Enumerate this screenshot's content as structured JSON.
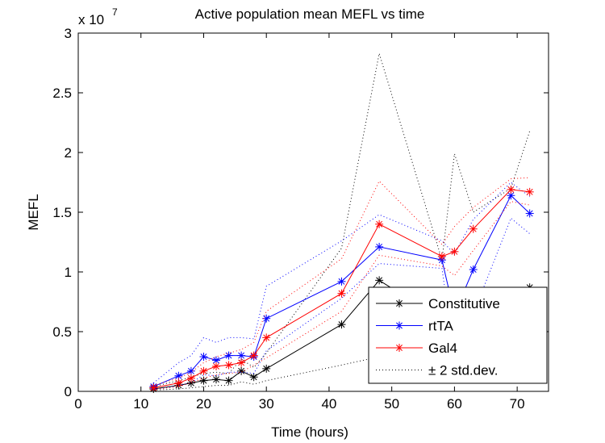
{
  "chart_data": {
    "type": "line",
    "title": "Active population mean MEFL vs time",
    "xlabel": "Time (hours)",
    "ylabel": "MEFL",
    "xlim": [
      0,
      75
    ],
    "ylim": [
      0,
      30000000
    ],
    "y_exponent_label": "x 10",
    "y_exponent_power": "7",
    "xticks": [
      0,
      10,
      20,
      30,
      40,
      50,
      60,
      70
    ],
    "xtick_labels": [
      "0",
      "10",
      "20",
      "30",
      "40",
      "50",
      "60",
      "70"
    ],
    "yticks": [
      0,
      5000000,
      10000000,
      15000000,
      20000000,
      25000000,
      30000000
    ],
    "ytick_labels": [
      "0",
      "0.5",
      "1",
      "1.5",
      "2",
      "2.5",
      "3"
    ],
    "grid": false,
    "legend_position": "bottom-right",
    "series": [
      {
        "name": "Constitutive",
        "color": "#000000",
        "x": [
          12,
          16,
          18,
          20,
          22,
          24,
          26,
          28,
          30,
          42,
          48,
          58,
          60,
          63,
          69,
          72
        ],
        "y": [
          200000,
          500000,
          700000,
          900000,
          1000000,
          900000,
          1700000,
          1200000,
          1900000,
          5600000,
          9300000,
          6000000,
          5000000,
          6000000,
          7500000,
          8700000
        ],
        "band_upper": [
          400000,
          900000,
          1200000,
          1500000,
          1600000,
          1500000,
          2700000,
          2000000,
          3200000,
          12000000,
          28300000,
          11000000,
          19900000,
          15000000,
          17000000,
          21800000
        ],
        "band_lower": [
          100000,
          200000,
          300000,
          400000,
          500000,
          500000,
          800000,
          600000,
          900000,
          2200000,
          2900000,
          2600000,
          2500000,
          2700000,
          3200000,
          3800000
        ]
      },
      {
        "name": "rtTA",
        "color": "#0000ff",
        "x": [
          12,
          16,
          18,
          20,
          22,
          24,
          26,
          28,
          30,
          42,
          48,
          58,
          60,
          63,
          69,
          72
        ],
        "y": [
          400000,
          1300000,
          1700000,
          2900000,
          2600000,
          3000000,
          3000000,
          2900000,
          6100000,
          9200000,
          12100000,
          11000000,
          6500000,
          10200000,
          16400000,
          14900000
        ],
        "band_upper": [
          700000,
          2400000,
          3000000,
          4500000,
          4100000,
          4500000,
          4500000,
          4400000,
          8800000,
          12600000,
          14800000,
          12600000,
          11500000,
          14400000,
          17500000,
          16300000
        ],
        "band_lower": [
          150000,
          500000,
          700000,
          1400000,
          1300000,
          1600000,
          1600000,
          1500000,
          3400000,
          7800000,
          10700000,
          10300000,
          2800000,
          6500000,
          14500000,
          13200000
        ]
      },
      {
        "name": "Gal4",
        "color": "#ff0000",
        "x": [
          12,
          16,
          18,
          20,
          22,
          24,
          26,
          28,
          30,
          42,
          48,
          58,
          60,
          63,
          69,
          72
        ],
        "y": [
          300000,
          700000,
          1100000,
          1700000,
          2100000,
          2200000,
          2400000,
          3000000,
          4500000,
          8200000,
          14000000,
          11300000,
          11700000,
          13600000,
          16900000,
          16700000
        ],
        "band_upper": [
          500000,
          1100000,
          1600000,
          2400000,
          2900000,
          3200000,
          3500000,
          4100000,
          6700000,
          11100000,
          17600000,
          12300000,
          13800000,
          15400000,
          17800000,
          17900000
        ],
        "band_lower": [
          150000,
          400000,
          700000,
          1100000,
          1400000,
          1500000,
          1600000,
          2200000,
          2800000,
          6700000,
          11400000,
          10500000,
          9700000,
          11800000,
          15900000,
          15600000
        ]
      }
    ],
    "legend": [
      {
        "label": "Constitutive",
        "color": "#000000",
        "style": "line-star"
      },
      {
        "label": "rtTA",
        "color": "#0000ff",
        "style": "line-star"
      },
      {
        "label": "Gal4",
        "color": "#ff0000",
        "style": "line-star"
      },
      {
        "label": "± 2 std.dev.",
        "color": "#000000",
        "style": "dotted"
      }
    ]
  }
}
